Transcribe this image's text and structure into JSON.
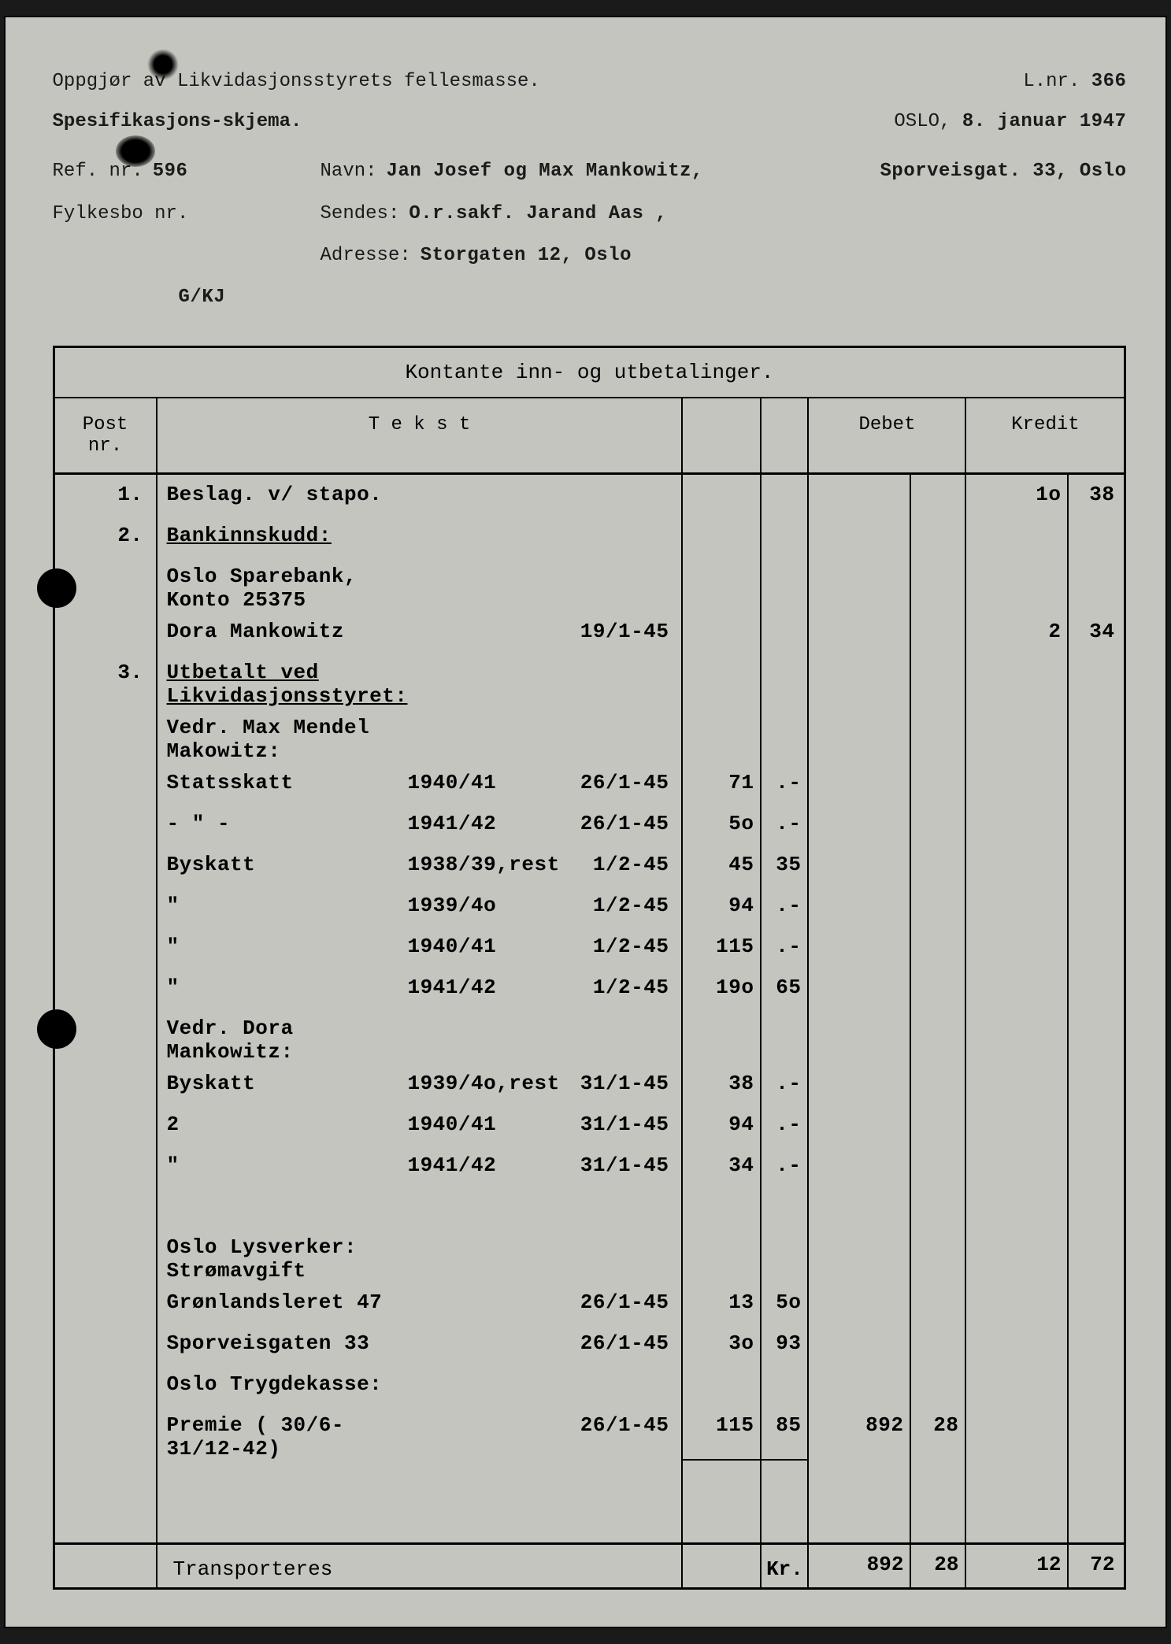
{
  "header": {
    "line1": "Oppgjør av Likvidasjonsstyrets fellesmasse.",
    "line2": "Spesifikasjons-skjema.",
    "lnr_label": "L.nr.",
    "lnr": "366",
    "city": "OSLO,",
    "date": "8. januar 1947",
    "ref_label": "Ref. nr.",
    "ref": "596",
    "navn_label": "Navn:",
    "navn": "Jan Josef og Max Mankowitz,",
    "adresse_navn": "Sporveisgat. 33, Oslo",
    "fylkesbo_label": "Fylkesbo nr.",
    "sendes_label": "Sendes:",
    "sendes": "O.r.sakf. Jarand Aas ,",
    "adresse_label": "Adresse:",
    "adresse": "Storgaten 12, Oslo",
    "initials": "G/KJ"
  },
  "colors": {
    "paper": "#c5c5c0",
    "ink": "#1a1a1a",
    "border": "#000000"
  },
  "ledger": {
    "title": "Kontante inn- og utbetalinger.",
    "columns": {
      "post": "Post nr.",
      "tekst": "T e k s t",
      "debet": "Debet",
      "kredit": "Kredit"
    },
    "rows": [
      {
        "post": "1.",
        "t1": "Beslag. v/ stapo.",
        "t2": "",
        "t3": "",
        "a1": "",
        "a2": "",
        "d1": "",
        "d2": "",
        "k1": "1o",
        "k2": "38"
      },
      {
        "post": "2.",
        "t1": "Bankinnskudd:",
        "underline": true
      },
      {
        "post": "",
        "t1": "Oslo Sparebank, Konto 25375"
      },
      {
        "post": "",
        "t1": "Dora Mankowitz",
        "t2": "",
        "t3": "19/1-45",
        "k1": "2",
        "k2": "34"
      },
      {
        "post": "3.",
        "t1": "Utbetalt ved Likvidasjonsstyret:",
        "underline": true
      },
      {
        "post": "",
        "t1": "Vedr. Max Mendel Makowitz:"
      },
      {
        "post": "",
        "t1": "Statsskatt",
        "t2": "1940/41",
        "t3": "26/1-45",
        "a1": "71",
        "a2": ".-"
      },
      {
        "post": "",
        "t1": "  - \" -",
        "t2": "1941/42",
        "t3": "26/1-45",
        "a1": "5o",
        "a2": ".-"
      },
      {
        "post": "",
        "t1": "Byskatt",
        "t2": "1938/39,rest",
        "t3": "1/2-45",
        "a1": "45",
        "a2": "35"
      },
      {
        "post": "",
        "t1": "  \"",
        "t2": "1939/4o",
        "t3": "1/2-45",
        "a1": "94",
        "a2": ".-"
      },
      {
        "post": "",
        "t1": "  \"",
        "t2": "1940/41",
        "t3": "1/2-45",
        "a1": "115",
        "a2": ".-"
      },
      {
        "post": "",
        "t1": "  \"",
        "t2": "1941/42",
        "t3": "1/2-45",
        "a1": "19o",
        "a2": "65"
      },
      {
        "post": "",
        "t1": "Vedr. Dora Mankowitz:"
      },
      {
        "post": "",
        "t1": "Byskatt",
        "t2": "1939/4o,rest",
        "t3": "31/1-45",
        "a1": "38",
        "a2": ".-"
      },
      {
        "post": "",
        "t1": "  2",
        "t2": "1940/41",
        "t3": "31/1-45",
        "a1": "94",
        "a2": ".-"
      },
      {
        "post": "",
        "t1": "  \"",
        "t2": "1941/42",
        "t3": "31/1-45",
        "a1": "34",
        "a2": ".-"
      },
      {
        "post": "",
        "t1": ""
      },
      {
        "post": "",
        "t1": "Oslo Lysverker: Strømavgift"
      },
      {
        "post": "",
        "t1": "Grønlandsleret 47",
        "t2": "",
        "t3": "26/1-45",
        "a1": "13",
        "a2": "5o"
      },
      {
        "post": "",
        "t1": "Sporveisgaten 33",
        "t2": "",
        "t3": "26/1-45",
        "a1": "3o",
        "a2": "93"
      },
      {
        "post": "",
        "t1": "Oslo Trygdekasse:"
      },
      {
        "post": "",
        "t1": "Premie ( 30/6-31/12-42)",
        "t2": "",
        "t3": "26/1-45",
        "a1": "115",
        "a2": "85",
        "d1": "892",
        "d2": "28",
        "sumline": true
      },
      {
        "post": "",
        "t1": ""
      },
      {
        "post": "",
        "t1": ""
      }
    ],
    "footer": {
      "label": "Transporteres",
      "kr": "Kr.",
      "d1": "892",
      "d2": "28",
      "k1": "12",
      "k2": "72"
    }
  }
}
